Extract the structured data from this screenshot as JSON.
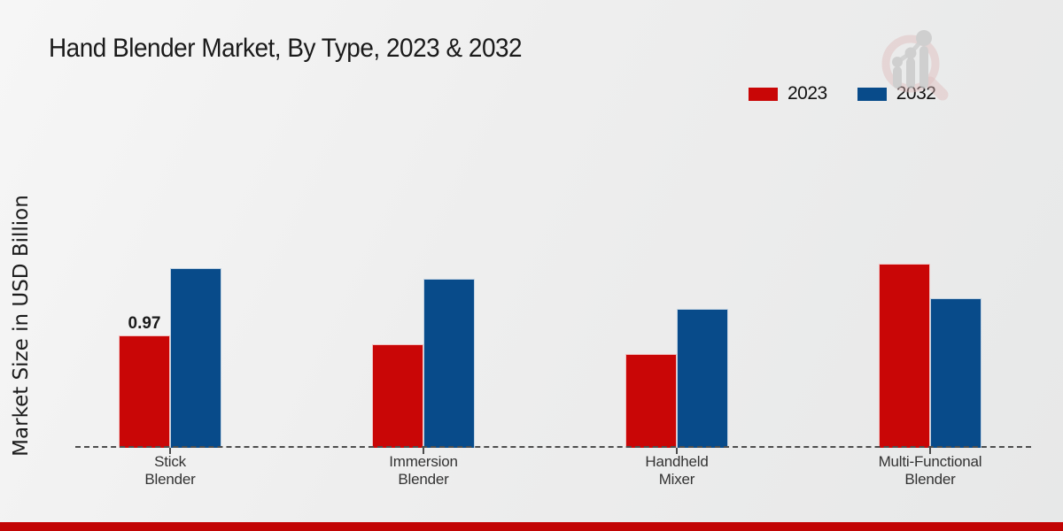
{
  "title": "Hand Blender Market, By Type, 2023 & 2032",
  "y_axis_label": "Market Size in USD Billion",
  "legend": [
    {
      "label": "2023",
      "color": "#c90606"
    },
    {
      "label": "2032",
      "color": "#084b8a"
    }
  ],
  "colors": {
    "series_2023": "#c90606",
    "series_2032": "#084b8a",
    "baseline": "#4d4d4d",
    "footer_stripe": "#c20404",
    "background_light": "#f6f6f6",
    "background_dark": "#e7e8e8"
  },
  "watermark_icon": "magnifier-bar-chart-logo",
  "chart_data": {
    "type": "bar",
    "categories": [
      "Stick Blender",
      "Immersion Blender",
      "Handheld Mixer",
      "Multi-Functional Blender"
    ],
    "series": [
      {
        "name": "2023",
        "color": "#c90606",
        "values": [
          0.97,
          0.89,
          0.81,
          1.59
        ]
      },
      {
        "name": "2032",
        "color": "#084b8a",
        "values": [
          1.55,
          1.46,
          1.2,
          1.29
        ]
      }
    ],
    "data_labels": [
      {
        "series": "2023",
        "category": "Stick Blender",
        "text": "0.97"
      }
    ],
    "title": "Hand Blender Market, By Type, 2023 & 2032",
    "xlabel": "",
    "ylabel": "Market Size in USD Billion",
    "ylim": [
      0,
      1.8
    ],
    "grid": false,
    "legend_position": "top-right",
    "baseline_style": "dashed"
  }
}
